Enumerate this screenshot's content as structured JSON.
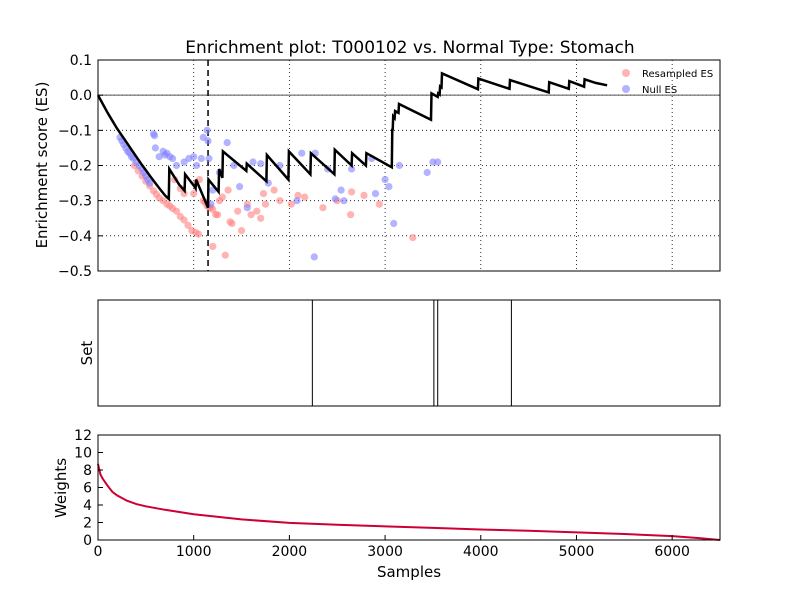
{
  "title": "Enrichment plot: T000102 vs. Normal Type: Stomach",
  "chart_data": [
    {
      "panel": "enrichment",
      "type": "line",
      "ylabel": "Enrichment score (ES)",
      "xlabel": "",
      "xlim": [
        0,
        6500
      ],
      "ylim": [
        -0.5,
        0.1
      ],
      "yticks": [
        -0.5,
        -0.4,
        -0.3,
        -0.2,
        -0.1,
        0.0,
        0.1
      ],
      "yticklabels": [
        "−0.5",
        "−0.4",
        "−0.3",
        "−0.2",
        "−0.1",
        "0.0",
        "0.1"
      ],
      "xgrid": [
        1000,
        2000,
        3000,
        4000,
        5000,
        6000
      ],
      "grid": true,
      "legend_position": "top-right",
      "es_line_color": "#000000",
      "zero_line": 0.0,
      "dashed_marker_x": 1150,
      "series": [
        {
          "name": "",
          "type": "line",
          "points": [
            [
              0,
              0
            ],
            [
              50,
              -0.025
            ],
            [
              100,
              -0.05
            ],
            [
              150,
              -0.073
            ],
            [
              200,
              -0.095
            ],
            [
              250,
              -0.115
            ],
            [
              300,
              -0.135
            ],
            [
              350,
              -0.155
            ],
            [
              400,
              -0.175
            ],
            [
              450,
              -0.195
            ],
            [
              500,
              -0.213
            ],
            [
              550,
              -0.232
            ],
            [
              600,
              -0.25
            ],
            [
              650,
              -0.268
            ],
            [
              700,
              -0.285
            ],
            [
              740,
              -0.295
            ],
            [
              745,
              -0.21
            ],
            [
              850,
              -0.255
            ],
            [
              905,
              -0.272
            ],
            [
              910,
              -0.225
            ],
            [
              1000,
              -0.257
            ],
            [
              1020,
              -0.265
            ],
            [
              1025,
              -0.24
            ],
            [
              1150,
              -0.32
            ],
            [
              1155,
              -0.24
            ],
            [
              1260,
              -0.275
            ],
            [
              1265,
              -0.21
            ],
            [
              1300,
              -0.235
            ],
            [
              1305,
              -0.16
            ],
            [
              1550,
              -0.215
            ],
            [
              1555,
              -0.195
            ],
            [
              1760,
              -0.245
            ],
            [
              1765,
              -0.17
            ],
            [
              1990,
              -0.24
            ],
            [
              1995,
              -0.16
            ],
            [
              2220,
              -0.225
            ],
            [
              2225,
              -0.165
            ],
            [
              2470,
              -0.225
            ],
            [
              2475,
              -0.155
            ],
            [
              2650,
              -0.2
            ],
            [
              2655,
              -0.165
            ],
            [
              2800,
              -0.2
            ],
            [
              2805,
              -0.165
            ],
            [
              3070,
              -0.205
            ],
            [
              3075,
              -0.095
            ],
            [
              3080,
              -0.1
            ],
            [
              3085,
              -0.06
            ],
            [
              3100,
              -0.065
            ],
            [
              3105,
              -0.045
            ],
            [
              3140,
              -0.05
            ],
            [
              3145,
              -0.025
            ],
            [
              3480,
              -0.07
            ],
            [
              3485,
              0.005
            ],
            [
              3550,
              -0.005
            ],
            [
              3555,
              0.005
            ],
            [
              3570,
              0.002
            ],
            [
              3575,
              0.025
            ],
            [
              3590,
              0.022
            ],
            [
              3595,
              0.062
            ],
            [
              3970,
              0.017
            ],
            [
              3975,
              0.047
            ],
            [
              4300,
              0.018
            ],
            [
              4305,
              0.043
            ],
            [
              4710,
              0.008
            ],
            [
              4715,
              0.037
            ],
            [
              4920,
              0.018
            ],
            [
              4925,
              0.04
            ],
            [
              5080,
              0.024
            ],
            [
              5085,
              0.045
            ],
            [
              5200,
              0.035
            ],
            [
              5320,
              0.028
            ]
          ]
        },
        {
          "name": "Resampled ES",
          "type": "scatter",
          "color": "#ff8080",
          "points": [
            [
              380,
              -0.2
            ],
            [
              420,
              -0.215
            ],
            [
              460,
              -0.23
            ],
            [
              500,
              -0.245
            ],
            [
              540,
              -0.258
            ],
            [
              580,
              -0.272
            ],
            [
              610,
              -0.282
            ],
            [
              640,
              -0.292
            ],
            [
              680,
              -0.3
            ],
            [
              720,
              -0.31
            ],
            [
              750,
              -0.315
            ],
            [
              780,
              -0.322
            ],
            [
              820,
              -0.33
            ],
            [
              860,
              -0.345
            ],
            [
              900,
              -0.355
            ],
            [
              940,
              -0.37
            ],
            [
              980,
              -0.385
            ],
            [
              1020,
              -0.39
            ],
            [
              1050,
              -0.395
            ],
            [
              800,
              -0.24
            ],
            [
              860,
              -0.265
            ],
            [
              900,
              -0.28
            ],
            [
              1000,
              -0.28
            ],
            [
              1020,
              -0.25
            ],
            [
              1060,
              -0.24
            ],
            [
              1100,
              -0.3
            ],
            [
              1120,
              -0.305
            ],
            [
              1140,
              -0.315
            ],
            [
              1160,
              -0.318
            ],
            [
              1180,
              -0.32
            ],
            [
              1200,
              -0.325
            ],
            [
              1230,
              -0.34
            ],
            [
              1250,
              -0.34
            ],
            [
              1200,
              -0.43
            ],
            [
              1270,
              -0.3
            ],
            [
              1300,
              -0.29
            ],
            [
              1330,
              -0.455
            ],
            [
              1360,
              -0.27
            ],
            [
              1380,
              -0.36
            ],
            [
              1400,
              -0.365
            ],
            [
              1460,
              -0.33
            ],
            [
              1500,
              -0.385
            ],
            [
              1560,
              -0.31
            ],
            [
              1600,
              -0.34
            ],
            [
              1660,
              -0.33
            ],
            [
              1700,
              -0.35
            ],
            [
              1730,
              -0.28
            ],
            [
              1750,
              -0.31
            ],
            [
              1840,
              -0.27
            ],
            [
              1900,
              -0.3
            ],
            [
              2020,
              -0.31
            ],
            [
              2090,
              -0.285
            ],
            [
              2160,
              -0.29
            ],
            [
              2350,
              -0.32
            ],
            [
              2500,
              -0.3
            ],
            [
              2640,
              -0.34
            ],
            [
              2650,
              -0.275
            ],
            [
              2780,
              -0.285
            ],
            [
              2940,
              -0.31
            ],
            [
              3290,
              -0.405
            ]
          ]
        },
        {
          "name": "Null ES",
          "type": "scatter",
          "color": "#8080ff",
          "points": [
            [
              230,
              -0.12
            ],
            [
              250,
              -0.13
            ],
            [
              270,
              -0.14
            ],
            [
              290,
              -0.15
            ],
            [
              310,
              -0.16
            ],
            [
              330,
              -0.165
            ],
            [
              350,
              -0.175
            ],
            [
              370,
              -0.18
            ],
            [
              400,
              -0.19
            ],
            [
              430,
              -0.2
            ],
            [
              460,
              -0.21
            ],
            [
              480,
              -0.22
            ],
            [
              500,
              -0.23
            ],
            [
              520,
              -0.24
            ],
            [
              540,
              -0.25
            ],
            [
              580,
              -0.11
            ],
            [
              590,
              -0.115
            ],
            [
              600,
              -0.15
            ],
            [
              640,
              -0.175
            ],
            [
              680,
              -0.16
            ],
            [
              700,
              -0.17
            ],
            [
              720,
              -0.165
            ],
            [
              750,
              -0.175
            ],
            [
              780,
              -0.18
            ],
            [
              820,
              -0.2
            ],
            [
              900,
              -0.19
            ],
            [
              950,
              -0.18
            ],
            [
              1000,
              -0.175
            ],
            [
              1030,
              -0.2
            ],
            [
              1080,
              -0.18
            ],
            [
              1100,
              -0.12
            ],
            [
              1140,
              -0.1
            ],
            [
              1150,
              -0.13
            ],
            [
              1160,
              -0.18
            ],
            [
              1200,
              -0.27
            ],
            [
              1270,
              -0.22
            ],
            [
              1350,
              -0.135
            ],
            [
              1420,
              -0.2
            ],
            [
              1480,
              -0.26
            ],
            [
              1560,
              -0.32
            ],
            [
              1620,
              -0.19
            ],
            [
              1700,
              -0.195
            ],
            [
              1780,
              -0.25
            ],
            [
              1900,
              -0.2
            ],
            [
              2080,
              -0.3
            ],
            [
              2130,
              -0.165
            ],
            [
              2270,
              -0.165
            ],
            [
              2400,
              -0.21
            ],
            [
              2480,
              -0.295
            ],
            [
              2540,
              -0.27
            ],
            [
              2570,
              -0.3
            ],
            [
              2650,
              -0.21
            ],
            [
              2860,
              -0.18
            ],
            [
              2900,
              -0.28
            ],
            [
              3000,
              -0.24
            ],
            [
              3040,
              -0.26
            ],
            [
              3090,
              -0.365
            ],
            [
              3150,
              -0.2
            ],
            [
              3440,
              -0.22
            ],
            [
              3500,
              -0.19
            ],
            [
              3550,
              -0.19
            ],
            [
              2260,
              -0.46
            ],
            [
              1180,
              -0.31
            ]
          ]
        }
      ]
    },
    {
      "panel": "set",
      "type": "line",
      "ylabel": "Set",
      "xlabel": "",
      "xlim": [
        0,
        6500
      ],
      "positions": [
        2240,
        3510,
        3550,
        4320
      ]
    },
    {
      "panel": "weights",
      "type": "line",
      "ylabel": "Weights",
      "xlabel": "Samples",
      "xlim": [
        0,
        6500
      ],
      "ylim": [
        0,
        12
      ],
      "xticks": [
        0,
        1000,
        2000,
        3000,
        4000,
        5000,
        6000
      ],
      "yticks": [
        0,
        2,
        4,
        6,
        8,
        10,
        12
      ],
      "color": "#cc0033",
      "points": [
        [
          0,
          8.7
        ],
        [
          25,
          7.5
        ],
        [
          50,
          7.0
        ],
        [
          75,
          6.6
        ],
        [
          100,
          6.2
        ],
        [
          150,
          5.5
        ],
        [
          200,
          5.1
        ],
        [
          300,
          4.5
        ],
        [
          400,
          4.1
        ],
        [
          500,
          3.85
        ],
        [
          700,
          3.45
        ],
        [
          1000,
          2.95
        ],
        [
          1500,
          2.35
        ],
        [
          2000,
          1.95
        ],
        [
          2500,
          1.75
        ],
        [
          3000,
          1.55
        ],
        [
          3500,
          1.38
        ],
        [
          4000,
          1.2
        ],
        [
          4500,
          1.05
        ],
        [
          5000,
          0.87
        ],
        [
          5500,
          0.68
        ],
        [
          6000,
          0.45
        ],
        [
          6300,
          0.2
        ],
        [
          6500,
          0.0
        ]
      ]
    }
  ]
}
